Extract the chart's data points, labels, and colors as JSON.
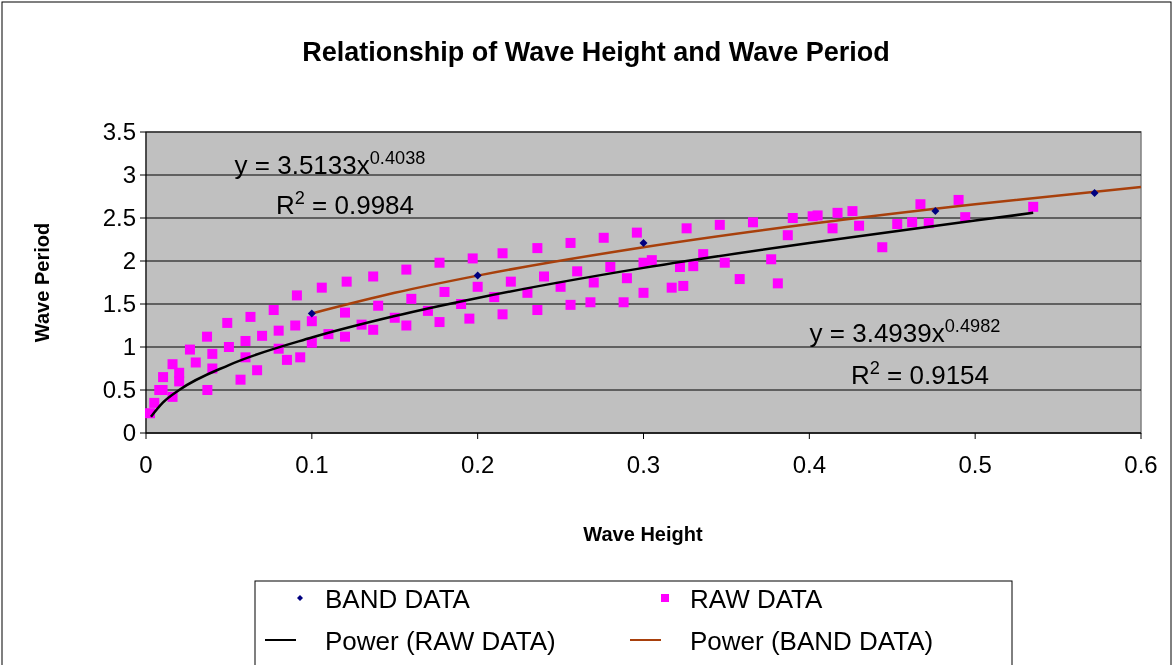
{
  "chart_data": {
    "type": "scatter",
    "title": "Relationship of Wave Height and Wave Period",
    "xlabel": "Wave Height",
    "ylabel": "Wave Period",
    "xlim": [
      0,
      0.6
    ],
    "xticks": [
      0,
      0.1,
      0.2,
      0.3,
      0.4,
      0.5,
      0.6
    ],
    "ylim": [
      0,
      3.5
    ],
    "yticks": [
      0,
      0.5,
      1,
      1.5,
      2,
      2.5,
      3,
      3.5
    ],
    "grid": "y",
    "legend": "bottom",
    "annotations": [
      "y = 3.5133x$^{0.4038}$",
      "R$^{2}$ = 0.9984",
      "y = 3.4939x$^{0.4982}$",
      "R$^{2}$ = 0.9154"
    ],
    "series": [
      {
        "name": "BAND DATA",
        "type": "scatter",
        "marker": "diamond",
        "color": "#000080",
        "x": [
          0.1,
          0.2,
          0.3,
          0.476,
          0.572
        ],
        "values": [
          1.39,
          1.83,
          2.21,
          2.58,
          2.79
        ]
      },
      {
        "name": "RAW DATA",
        "type": "scatter",
        "marker": "square",
        "color": "#ff00ff",
        "x": [
          0.0024,
          0.005,
          0.008,
          0.0103,
          0.016,
          0.0265,
          0.0368,
          0.049,
          0.063,
          0.077,
          0.091,
          0.106,
          0.121,
          0.137,
          0.157,
          0.177,
          0.197,
          0.215,
          0.236,
          0.256,
          0.276,
          0.296,
          0.326,
          0.346,
          0.366,
          0.01,
          0.02,
          0.03,
          0.04,
          0.05,
          0.06,
          0.07,
          0.08,
          0.09,
          0.1,
          0.12,
          0.14,
          0.16,
          0.18,
          0.2,
          0.22,
          0.24,
          0.26,
          0.28,
          0.3,
          0.016,
          0.037,
          0.057,
          0.067,
          0.085,
          0.093,
          0.1,
          0.12,
          0.137,
          0.157,
          0.177,
          0.195,
          0.215,
          0.236,
          0.256,
          0.268,
          0.288,
          0.02,
          0.04,
          0.06,
          0.08,
          0.11,
          0.13,
          0.15,
          0.17,
          0.19,
          0.21,
          0.23,
          0.25,
          0.27,
          0.29,
          0.305,
          0.317,
          0.324,
          0.322,
          0.33,
          0.336,
          0.349,
          0.358,
          0.377,
          0.381,
          0.39,
          0.387,
          0.3,
          0.402,
          0.405,
          0.414,
          0.417,
          0.426,
          0.43,
          0.444,
          0.453,
          0.462,
          0.467,
          0.472,
          0.49,
          0.494,
          0.535
        ],
        "values": [
          0.23,
          0.35,
          0.5,
          0.65,
          0.8,
          0.97,
          1.12,
          1.28,
          1.35,
          1.43,
          1.6,
          1.69,
          1.76,
          1.82,
          1.9,
          1.98,
          2.03,
          2.09,
          2.15,
          2.21,
          2.27,
          2.33,
          2.38,
          2.42,
          2.45,
          0.5,
          0.7,
          0.82,
          0.92,
          1.0,
          1.07,
          1.13,
          1.19,
          1.25,
          1.3,
          1.4,
          1.48,
          1.56,
          1.64,
          1.7,
          1.76,
          1.82,
          1.88,
          1.93,
          1.98,
          0.42,
          0.5,
          0.62,
          0.73,
          0.85,
          0.88,
          1.05,
          1.12,
          1.2,
          1.25,
          1.29,
          1.33,
          1.38,
          1.43,
          1.49,
          1.52,
          1.52,
          0.6,
          0.75,
          0.88,
          0.98,
          1.15,
          1.26,
          1.34,
          1.42,
          1.5,
          1.58,
          1.63,
          1.7,
          1.75,
          1.8,
          2.01,
          1.69,
          1.71,
          1.93,
          1.94,
          2.08,
          1.98,
          1.79,
          2.02,
          1.74,
          2.5,
          2.3,
          1.63,
          2.52,
          2.53,
          2.38,
          2.56,
          2.58,
          2.41,
          2.16,
          2.43,
          2.45,
          2.66,
          2.44,
          2.71,
          2.51,
          2.63
        ]
      },
      {
        "name": "Power (RAW DATA)",
        "type": "line",
        "color": "#000000",
        "line_style": "solid",
        "x": [
          0.003,
          0.01,
          0.02,
          0.05,
          0.1,
          0.15,
          0.2,
          0.3,
          0.4,
          0.5,
          0.535
        ],
        "values": [
          0.19,
          0.35,
          0.5,
          0.79,
          1.11,
          1.36,
          1.57,
          1.92,
          2.21,
          2.47,
          2.56
        ]
      },
      {
        "name": "Power (BAND DATA)",
        "type": "line",
        "color": "#a8400c",
        "line_style": "solid",
        "x": [
          0.1,
          0.15,
          0.2,
          0.3,
          0.4,
          0.5,
          0.6
        ],
        "values": [
          1.39,
          1.63,
          1.83,
          2.16,
          2.43,
          2.66,
          2.86
        ]
      }
    ]
  }
}
